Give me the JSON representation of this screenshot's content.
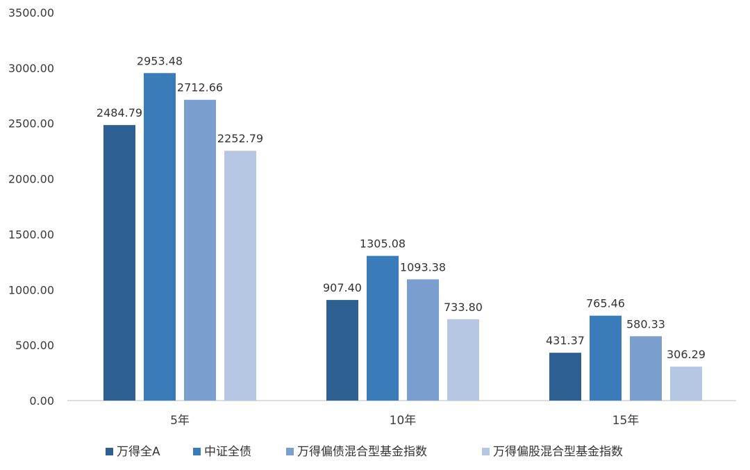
{
  "chart_data": {
    "type": "bar",
    "categories": [
      "5年",
      "10年",
      "15年"
    ],
    "series": [
      {
        "name": "万得全A",
        "values": [
          2484.79,
          907.4,
          431.37
        ],
        "labels": [
          "2484.79",
          "907.40",
          "431.37"
        ],
        "color": "#2E6093"
      },
      {
        "name": "中证全债",
        "values": [
          2953.48,
          1305.08,
          765.46
        ],
        "labels": [
          "2953.48",
          "1305.08",
          "765.46"
        ],
        "color": "#3A7BBA"
      },
      {
        "name": "万得偏债混合型基金指数",
        "values": [
          2712.66,
          1093.38,
          580.33
        ],
        "labels": [
          "2712.66",
          "1093.38",
          "580.33"
        ],
        "color": "#7A9FCF"
      },
      {
        "name": "万得偏股混合型基金指数",
        "values": [
          2252.79,
          733.8,
          306.29
        ],
        "labels": [
          "2252.79",
          "733.80",
          "306.29"
        ],
        "color": "#B5C7E2"
      }
    ],
    "ylim": [
      0,
      3500
    ],
    "yticks": [
      "0.00",
      "500.00",
      "1000.00",
      "1500.00",
      "2000.00",
      "2500.00",
      "3000.00",
      "3500.00"
    ],
    "gridlines": false,
    "legend_position": "bottom"
  }
}
